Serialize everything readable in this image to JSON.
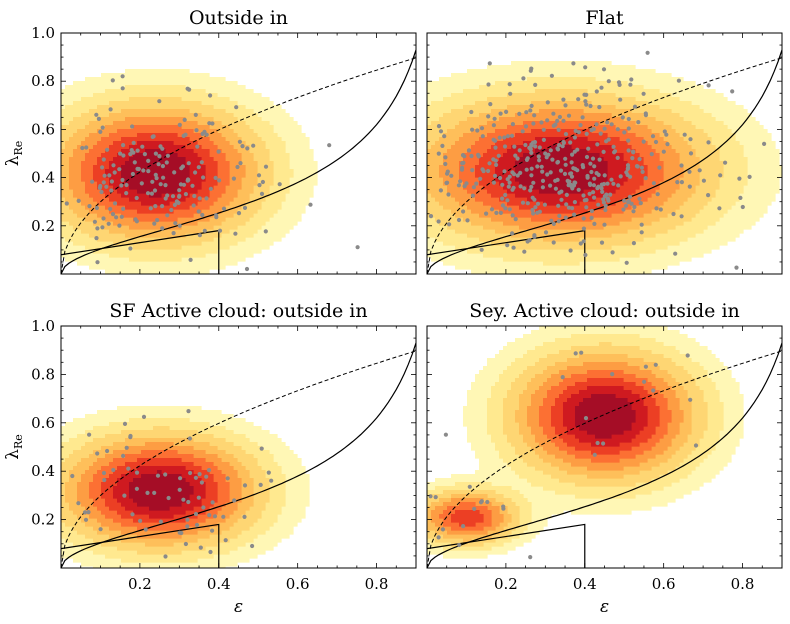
{
  "colors": {
    "dots": "#8a8a8a",
    "levels": [
      "#fff7b5",
      "#ffe98f",
      "#fed673",
      "#febf5a",
      "#fd9d43",
      "#fc7033",
      "#ec3f24",
      "#cf1a20",
      "#a50d26"
    ]
  },
  "chart_data": [
    {
      "type": "scatter",
      "title": "Outside in",
      "xlabel": "",
      "ylabel": "λRe",
      "xlim": [
        0.0,
        0.9
      ],
      "ylim": [
        0.0,
        1.0
      ],
      "xticks": [],
      "yticks": [
        "0.2",
        "0.4",
        "0.6",
        "0.8",
        "1.0"
      ],
      "density_peaks": [
        {
          "x": 0.24,
          "y": 0.42,
          "sx": 0.16,
          "sy": 0.17,
          "w": 1.0
        }
      ],
      "n_points": 180,
      "seed": 11
    },
    {
      "type": "scatter",
      "title": "Flat",
      "xlabel": "",
      "ylabel": "",
      "xlim": [
        0.0,
        0.9
      ],
      "ylim": [
        0.0,
        1.0
      ],
      "xticks": [],
      "yticks": [],
      "density_peaks": [
        {
          "x": 0.34,
          "y": 0.43,
          "sx": 0.22,
          "sy": 0.18,
          "w": 1.0
        }
      ],
      "n_points": 420,
      "seed": 23
    },
    {
      "type": "scatter",
      "title": "SF Active cloud: outside in",
      "xlabel": "ε",
      "ylabel": "λRe",
      "xlim": [
        0.0,
        0.9
      ],
      "ylim": [
        0.0,
        1.0
      ],
      "xticks": [
        "0.2",
        "0.4",
        "0.6",
        "0.8"
      ],
      "yticks": [
        "0.2",
        "0.4",
        "0.6",
        "0.8",
        "1.0"
      ],
      "density_peaks": [
        {
          "x": 0.25,
          "y": 0.32,
          "sx": 0.15,
          "sy": 0.14,
          "w": 1.0
        }
      ],
      "n_points": 70,
      "seed": 37
    },
    {
      "type": "scatter",
      "title": "Sey. Active cloud: outside in",
      "xlabel": "ε",
      "ylabel": "",
      "xlim": [
        0.0,
        0.9
      ],
      "ylim": [
        0.0,
        1.0
      ],
      "xticks": [
        "0.2",
        "0.4",
        "0.6",
        "0.8"
      ],
      "yticks": [],
      "density_peaks": [
        {
          "x": 0.45,
          "y": 0.63,
          "sx": 0.14,
          "sy": 0.16,
          "w": 1.0
        },
        {
          "x": 0.1,
          "y": 0.21,
          "sx": 0.08,
          "sy": 0.07,
          "w": 0.7
        }
      ],
      "n_points": 30,
      "seed": 51
    }
  ]
}
